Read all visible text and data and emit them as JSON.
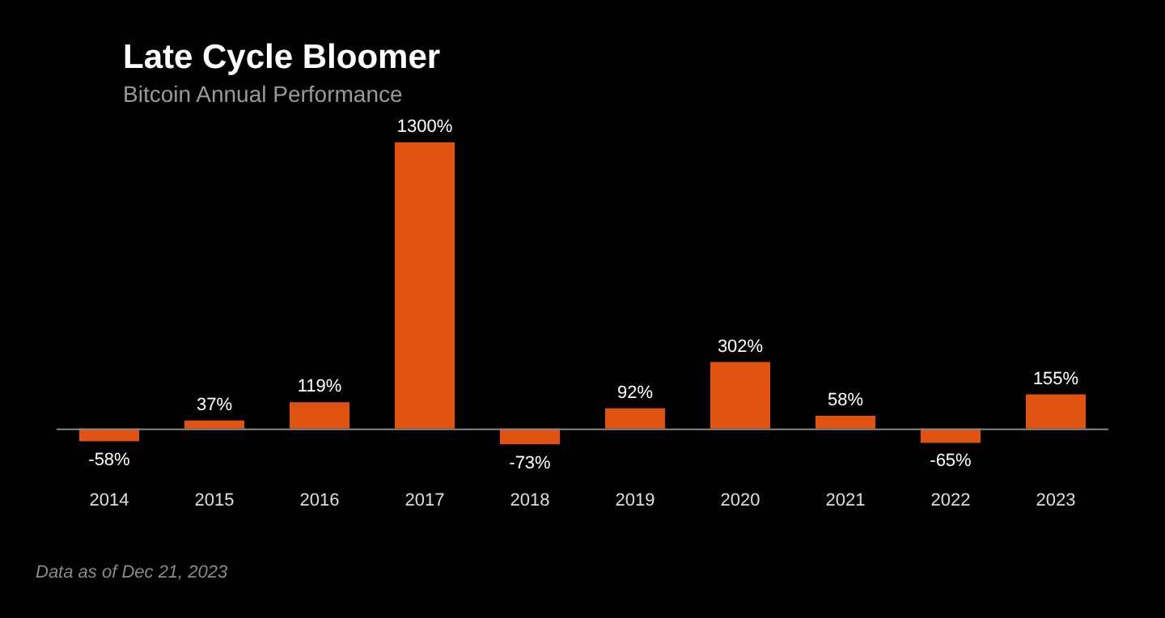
{
  "chart_data": {
    "type": "bar",
    "title": "Late Cycle Bloomer",
    "subtitle": "Bitcoin Annual Performance",
    "categories": [
      "2014",
      "2015",
      "2016",
      "2017",
      "2018",
      "2019",
      "2020",
      "2021",
      "2022",
      "2023"
    ],
    "values": [
      -58,
      37,
      119,
      1300,
      -73,
      92,
      302,
      58,
      -65,
      155
    ],
    "value_labels": [
      "-58%",
      "37%",
      "119%",
      "1300%",
      "-73%",
      "92%",
      "302%",
      "58%",
      "-65%",
      "155%"
    ],
    "color": "#e0520f",
    "legend": false,
    "annotations": [
      "Data as of Dec 21, 2023"
    ]
  }
}
